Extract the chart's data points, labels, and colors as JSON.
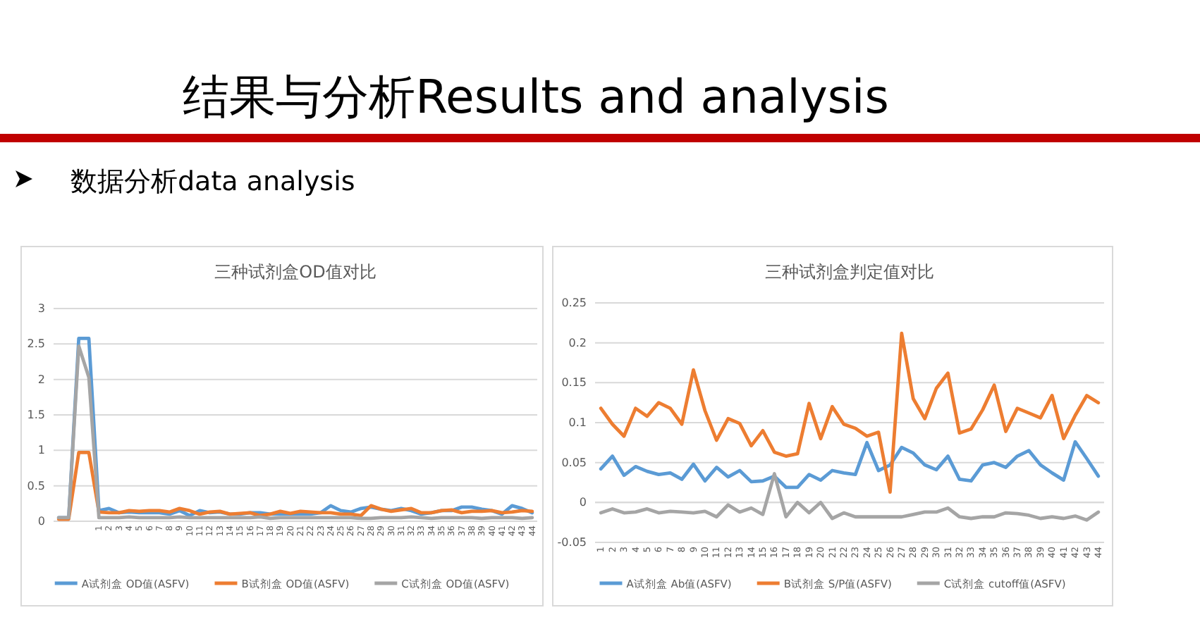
{
  "chart_data": [
    {
      "type": "line",
      "title": "三种试剂盒OD值对比",
      "annotations": [
        "结果与分析Results and analysis",
        "数据分析data analysis"
      ],
      "categories": [
        null,
        null,
        null,
        null,
        "1",
        "2",
        "3",
        "4",
        "5",
        "6",
        "7",
        "8",
        "9",
        "10",
        "11",
        "12",
        "13",
        "14",
        "15",
        "16",
        "17",
        "18",
        "19",
        "20",
        "21",
        "22",
        "23",
        "24",
        "25",
        "26",
        "27",
        "28",
        "29",
        "30",
        "31",
        "32",
        "33",
        "34",
        "35",
        "36",
        "37",
        "38",
        "39",
        "40",
        "41",
        "42",
        "43",
        "44"
      ],
      "series": [
        {
          "name": "A试剂盒 OD值(ASFV)",
          "color": "#5b9bd5",
          "values": [
            0.05,
            0.05,
            2.58,
            2.58,
            0.15,
            0.18,
            0.12,
            0.13,
            0.12,
            0.12,
            0.12,
            0.1,
            0.15,
            0.08,
            0.15,
            0.12,
            0.13,
            0.1,
            0.1,
            0.12,
            0.12,
            0.1,
            0.1,
            0.1,
            0.1,
            0.1,
            0.12,
            0.22,
            0.15,
            0.13,
            0.18,
            0.2,
            0.17,
            0.15,
            0.18,
            0.15,
            0.1,
            0.12,
            0.15,
            0.15,
            0.2,
            0.2,
            0.17,
            0.15,
            0.1,
            0.22,
            0.18,
            0.12
          ]
        },
        {
          "name": "B试剂盒 OD值(ASFV)",
          "color": "#ed7d31",
          "values": [
            0.03,
            0.03,
            0.97,
            0.97,
            0.13,
            0.12,
            0.12,
            0.15,
            0.14,
            0.15,
            0.15,
            0.13,
            0.18,
            0.15,
            0.1,
            0.13,
            0.14,
            0.1,
            0.11,
            0.12,
            0.08,
            0.1,
            0.14,
            0.11,
            0.14,
            0.13,
            0.12,
            0.12,
            0.1,
            0.1,
            0.08,
            0.22,
            0.17,
            0.14,
            0.16,
            0.18,
            0.12,
            0.12,
            0.15,
            0.16,
            0.12,
            0.14,
            0.14,
            0.15,
            0.12,
            0.13,
            0.15,
            0.14
          ]
        },
        {
          "name": "C试剂盒 OD值(ASFV)",
          "color": "#a5a5a5",
          "values": [
            0.05,
            0.05,
            2.47,
            2.03,
            0.05,
            0.05,
            0.05,
            0.06,
            0.05,
            0.05,
            0.05,
            0.05,
            0.06,
            0.05,
            0.05,
            0.05,
            0.05,
            0.05,
            0.05,
            0.05,
            0.06,
            0.04,
            0.05,
            0.05,
            0.05,
            0.05,
            0.05,
            0.05,
            0.05,
            0.05,
            0.04,
            0.04,
            0.05,
            0.05,
            0.05,
            0.06,
            0.05,
            0.04,
            0.05,
            0.05,
            0.05,
            0.05,
            0.04,
            0.05,
            0.05,
            0.05,
            0.04,
            0.05
          ]
        }
      ],
      "ylim": [
        0,
        3
      ],
      "yticks": [
        0,
        0.5,
        1,
        1.5,
        2,
        2.5,
        3
      ],
      "grid": "y",
      "legend": "bottom",
      "marker": "none"
    },
    {
      "type": "line",
      "title": "三种试剂盒判定值对比",
      "categories": [
        "1",
        "2",
        "3",
        "4",
        "5",
        "6",
        "7",
        "8",
        "9",
        "10",
        "11",
        "12",
        "13",
        "14",
        "15",
        "16",
        "17",
        "18",
        "19",
        "20",
        "21",
        "22",
        "23",
        "24",
        "25",
        "26",
        "27",
        "28",
        "29",
        "30",
        "31",
        "32",
        "33",
        "34",
        "35",
        "36",
        "37",
        "38",
        "39",
        "40",
        "41",
        "42",
        "43",
        "44"
      ],
      "series": [
        {
          "name": "A试剂盒 Ab值(ASFV)",
          "color": "#5b9bd5",
          "values": [
            0.042,
            0.058,
            0.034,
            0.045,
            0.039,
            0.035,
            0.037,
            0.029,
            0.048,
            0.027,
            0.044,
            0.032,
            0.04,
            0.026,
            0.027,
            0.033,
            0.019,
            0.019,
            0.035,
            0.028,
            0.04,
            0.037,
            0.035,
            0.075,
            0.04,
            0.047,
            0.069,
            0.062,
            0.047,
            0.041,
            0.058,
            0.029,
            0.027,
            0.047,
            0.05,
            0.044,
            0.058,
            0.065,
            0.047,
            0.037,
            0.028,
            0.076,
            0.055,
            0.033
          ]
        },
        {
          "name": "B试剂盒 S/P值(ASFV)",
          "color": "#ed7d31",
          "values": [
            0.118,
            0.098,
            0.083,
            0.118,
            0.108,
            0.125,
            0.118,
            0.098,
            0.166,
            0.115,
            0.078,
            0.105,
            0.099,
            0.071,
            0.09,
            0.063,
            0.058,
            0.061,
            0.124,
            0.08,
            0.12,
            0.098,
            0.093,
            0.083,
            0.088,
            0.013,
            0.212,
            0.13,
            0.105,
            0.143,
            0.162,
            0.087,
            0.092,
            0.116,
            0.147,
            0.089,
            0.118,
            0.112,
            0.106,
            0.134,
            0.08,
            0.109,
            0.134,
            0.125
          ]
        },
        {
          "name": "C试剂盒 cutoff值(ASFV)",
          "color": "#a5a5a5",
          "values": [
            -0.013,
            -0.008,
            -0.013,
            -0.012,
            -0.008,
            -0.013,
            -0.011,
            -0.012,
            -0.013,
            -0.011,
            -0.018,
            -0.003,
            -0.012,
            -0.007,
            -0.015,
            0.036,
            -0.018,
            0,
            -0.013,
            0,
            -0.02,
            -0.013,
            -0.018,
            -0.018,
            -0.018,
            -0.018,
            -0.018,
            -0.015,
            -0.012,
            -0.012,
            -0.007,
            -0.018,
            -0.02,
            -0.018,
            -0.018,
            -0.013,
            -0.014,
            -0.016,
            -0.02,
            -0.018,
            -0.02,
            -0.017,
            -0.022,
            -0.012
          ]
        }
      ],
      "ylim": [
        -0.05,
        0.25
      ],
      "yticks": [
        -0.05,
        0,
        0.05,
        0.1,
        0.15,
        0.2,
        0.25
      ],
      "grid": "y",
      "legend": "bottom",
      "marker": "none"
    }
  ]
}
